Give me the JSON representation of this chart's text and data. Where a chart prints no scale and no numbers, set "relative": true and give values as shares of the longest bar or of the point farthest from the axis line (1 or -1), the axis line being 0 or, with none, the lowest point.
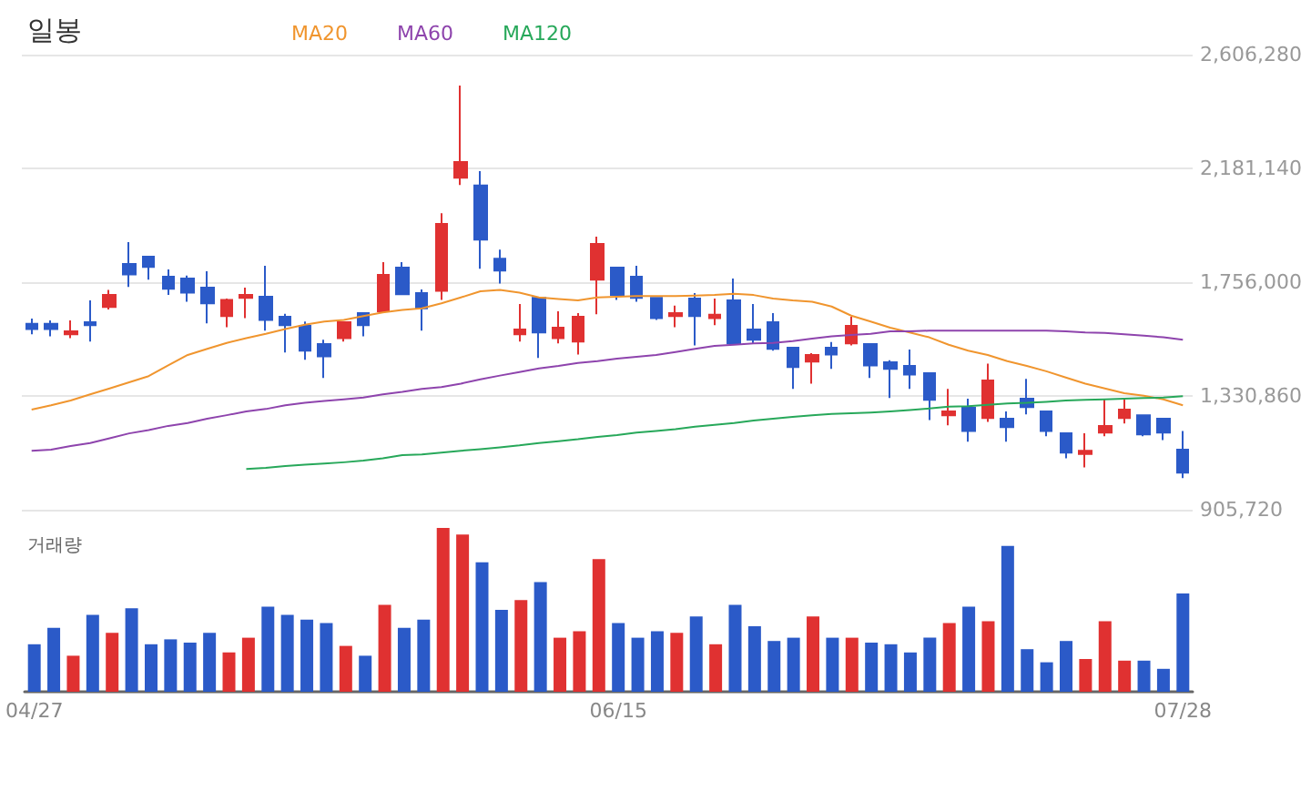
{
  "chart_data": [
    {
      "type": "candlestick",
      "title": "일봉",
      "categories": [
        null,
        null,
        null,
        null,
        null,
        null,
        null,
        null,
        null,
        null,
        null,
        null,
        null,
        null,
        null,
        null,
        null,
        null,
        null,
        null,
        null,
        null,
        null,
        null,
        null,
        null,
        null,
        null,
        null,
        null,
        null,
        null,
        null,
        null,
        null,
        null,
        null,
        null,
        null,
        null,
        null,
        null,
        null,
        null,
        null,
        null,
        null,
        null,
        null,
        null,
        null,
        null,
        null,
        null,
        null,
        null,
        null,
        null,
        null,
        null
      ],
      "ohlc": [
        [
          1600000,
          1620000,
          1561000,
          1581000
        ],
        [
          1600000,
          1613000,
          1554000,
          1581000
        ],
        [
          1561000,
          1613000,
          1547000,
          1572000
        ],
        [
          1606000,
          1688000,
          1534000,
          1595000
        ],
        [
          1663000,
          1727000,
          1654000,
          1708000
        ],
        [
          1824000,
          1906000,
          1738000,
          1785000
        ],
        [
          1851000,
          1851000,
          1765000,
          1813000
        ],
        [
          1776000,
          1804000,
          1708000,
          1731000
        ],
        [
          1770000,
          1781000,
          1683000,
          1717000
        ],
        [
          1736000,
          1797000,
          1602000,
          1677000
        ],
        [
          1629000,
          1695000,
          1588000,
          1690000
        ],
        [
          1697000,
          1736000,
          1622000,
          1708000
        ],
        [
          1702000,
          1817000,
          1575000,
          1615000
        ],
        [
          1627000,
          1638000,
          1493000,
          1595000
        ],
        [
          1593000,
          1609000,
          1466000,
          1500000
        ],
        [
          1525000,
          1541000,
          1398000,
          1479000
        ],
        [
          1547000,
          1609000,
          1534000,
          1606000
        ],
        [
          1640000,
          1640000,
          1554000,
          1595000
        ],
        [
          1647000,
          1831000,
          1647000,
          1783000
        ],
        [
          1810000,
          1831000,
          1711000,
          1711000
        ],
        [
          1715000,
          1729000,
          1575000,
          1658000
        ],
        [
          1724000,
          2014000,
          1690000,
          1974000
        ],
        [
          2146000,
          2491000,
          2119000,
          2205000
        ],
        [
          2117000,
          2171000,
          1806000,
          1915000
        ],
        [
          1844000,
          1878000,
          1751000,
          1799000
        ],
        [
          1561000,
          1674000,
          1534000,
          1579000
        ],
        [
          1697000,
          1697000,
          1473000,
          1568000
        ],
        [
          1547000,
          1647000,
          1527000,
          1586000
        ],
        [
          1534000,
          1640000,
          1486000,
          1627000
        ],
        [
          1765000,
          1926000,
          1636000,
          1899000
        ],
        [
          1810000,
          1810000,
          1690000,
          1708000
        ],
        [
          1776000,
          1817000,
          1683000,
          1697000
        ],
        [
          1697000,
          1697000,
          1615000,
          1622000
        ],
        [
          1629000,
          1668000,
          1588000,
          1640000
        ],
        [
          1695000,
          1715000,
          1520000,
          1629000
        ],
        [
          1622000,
          1695000,
          1595000,
          1634000
        ],
        [
          1688000,
          1770000,
          1527000,
          1527000
        ],
        [
          1579000,
          1674000,
          1527000,
          1541000
        ],
        [
          1606000,
          1640000,
          1500000,
          1507000
        ],
        [
          1511000,
          1511000,
          1357000,
          1439000
        ],
        [
          1459000,
          1491000,
          1377000,
          1484000
        ],
        [
          1511000,
          1532000,
          1432000,
          1486000
        ],
        [
          1527000,
          1627000,
          1520000,
          1593000
        ],
        [
          1525000,
          1525000,
          1398000,
          1445000
        ],
        [
          1457000,
          1464000,
          1323000,
          1432000
        ],
        [
          1443000,
          1504000,
          1357000,
          1411000
        ],
        [
          1416000,
          1416000,
          1241000,
          1316000
        ],
        [
          1259000,
          1357000,
          1221000,
          1273000
        ],
        [
          1287000,
          1321000,
          1160000,
          1200000
        ],
        [
          1248000,
          1452000,
          1234000,
          1389000
        ],
        [
          1246000,
          1273000,
          1160000,
          1214000
        ],
        [
          1321000,
          1395000,
          1262000,
          1289000
        ],
        [
          1273000,
          1273000,
          1180000,
          1200000
        ],
        [
          1191000,
          1191000,
          1098000,
          1119000
        ],
        [
          1114000,
          1191000,
          1064000,
          1126000
        ],
        [
          1194000,
          1321000,
          1180000,
          1219000
        ],
        [
          1248000,
          1321000,
          1228000,
          1280000
        ],
        [
          1259000,
          1259000,
          1180000,
          1187000
        ],
        [
          1246000,
          1246000,
          1166000,
          1194000
        ],
        [
          1130000,
          1200000,
          1024000,
          1044000
        ]
      ],
      "colors": [
        "#2b5ac8",
        "#2b5ac8",
        "#e03131",
        "#2b5ac8",
        "#e03131",
        "#2b5ac8",
        "#2b5ac8",
        "#2b5ac8",
        "#2b5ac8",
        "#2b5ac8",
        "#e03131",
        "#e03131",
        "#2b5ac8",
        "#2b5ac8",
        "#2b5ac8",
        "#2b5ac8",
        "#e03131",
        "#2b5ac8",
        "#e03131",
        "#2b5ac8",
        "#2b5ac8",
        "#e03131",
        "#e03131",
        "#2b5ac8",
        "#2b5ac8",
        "#e03131",
        "#2b5ac8",
        "#e03131",
        "#e03131",
        "#e03131",
        "#2b5ac8",
        "#2b5ac8",
        "#2b5ac8",
        "#e03131",
        "#2b5ac8",
        "#e03131",
        "#2b5ac8",
        "#2b5ac8",
        "#2b5ac8",
        "#2b5ac8",
        "#e03131",
        "#2b5ac8",
        "#e03131",
        "#2b5ac8",
        "#2b5ac8",
        "#2b5ac8",
        "#2b5ac8",
        "#e03131",
        "#2b5ac8",
        "#e03131",
        "#2b5ac8",
        "#2b5ac8",
        "#2b5ac8",
        "#2b5ac8",
        "#e03131",
        "#e03131",
        "#e03131",
        "#2b5ac8",
        "#2b5ac8",
        "#2b5ac8"
      ],
      "series": [
        {
          "name": "MA20",
          "type": "line",
          "color": "#f0952e",
          "values": [
            1280000,
            1296000,
            1314000,
            1337000,
            1359000,
            1382000,
            1405000,
            1445000,
            1484000,
            1507000,
            1529000,
            1547000,
            1563000,
            1581000,
            1597000,
            1609000,
            1615000,
            1629000,
            1643000,
            1652000,
            1658000,
            1677000,
            1699000,
            1722000,
            1727000,
            1717000,
            1699000,
            1693000,
            1688000,
            1699000,
            1702000,
            1704000,
            1704000,
            1704000,
            1706000,
            1708000,
            1713000,
            1708000,
            1695000,
            1688000,
            1683000,
            1665000,
            1631000,
            1609000,
            1586000,
            1568000,
            1550000,
            1522000,
            1500000,
            1484000,
            1461000,
            1443000,
            1423000,
            1400000,
            1377000,
            1359000,
            1341000,
            1332000,
            1318000,
            1296000
          ]
        },
        {
          "name": "MA60",
          "type": "line",
          "color": "#8e44ad",
          "values": [
            1126000,
            1130000,
            1144000,
            1155000,
            1173000,
            1191000,
            1203000,
            1219000,
            1230000,
            1246000,
            1259000,
            1273000,
            1282000,
            1296000,
            1305000,
            1312000,
            1318000,
            1325000,
            1337000,
            1346000,
            1357000,
            1364000,
            1377000,
            1393000,
            1407000,
            1420000,
            1434000,
            1443000,
            1454000,
            1461000,
            1470000,
            1477000,
            1484000,
            1495000,
            1507000,
            1518000,
            1522000,
            1527000,
            1529000,
            1536000,
            1545000,
            1554000,
            1559000,
            1563000,
            1572000,
            1572000,
            1575000,
            1575000,
            1575000,
            1575000,
            1575000,
            1575000,
            1575000,
            1572000,
            1568000,
            1566000,
            1561000,
            1556000,
            1550000,
            1541000
          ]
        },
        {
          "name": "MA120",
          "type": "line",
          "color": "#27a85a",
          "values": [
            null,
            null,
            null,
            null,
            null,
            null,
            null,
            null,
            null,
            null,
            null,
            1058000,
            1062000,
            1069000,
            1074000,
            1078000,
            1083000,
            1089000,
            1098000,
            1110000,
            1112000,
            1119000,
            1126000,
            1132000,
            1139000,
            1146000,
            1155000,
            1162000,
            1169000,
            1178000,
            1185000,
            1194000,
            1200000,
            1207000,
            1216000,
            1223000,
            1230000,
            1239000,
            1246000,
            1253000,
            1259000,
            1264000,
            1266000,
            1269000,
            1273000,
            1278000,
            1284000,
            1291000,
            1293000,
            1298000,
            1303000,
            1305000,
            1309000,
            1314000,
            1316000,
            1318000,
            1321000,
            1323000,
            1325000,
            1330000
          ]
        }
      ],
      "ylim": [
        905720,
        2606280
      ],
      "yticks": [
        {
          "value": 905720,
          "label": "905,720"
        },
        {
          "value": 1330860,
          "label": "1,330,860"
        },
        {
          "value": 1756000,
          "label": "1,756,000"
        },
        {
          "value": 2181140,
          "label": "2,181,140"
        },
        {
          "value": 2606280,
          "label": "2,606,280"
        }
      ],
      "grid": "y",
      "legend": "top",
      "marker": "none",
      "tick_labels": "y"
    },
    {
      "type": "bar",
      "title": "거래량",
      "relative": true,
      "categories": [
        "04/27",
        null,
        null,
        null,
        null,
        null,
        null,
        null,
        null,
        null,
        null,
        null,
        null,
        null,
        null,
        null,
        null,
        null,
        null,
        null,
        null,
        null,
        null,
        null,
        null,
        null,
        null,
        null,
        null,
        null,
        "06/15",
        null,
        null,
        null,
        null,
        null,
        null,
        null,
        null,
        null,
        null,
        null,
        null,
        null,
        null,
        null,
        null,
        null,
        null,
        null,
        null,
        null,
        null,
        null,
        null,
        null,
        null,
        null,
        null,
        "07/28"
      ],
      "values": [
        0.29,
        0.39,
        0.22,
        0.47,
        0.36,
        0.51,
        0.29,
        0.32,
        0.3,
        0.36,
        0.24,
        0.33,
        0.52,
        0.47,
        0.44,
        0.42,
        0.28,
        0.22,
        0.53,
        0.39,
        0.44,
        1,
        0.96,
        0.79,
        0.5,
        0.56,
        0.67,
        0.33,
        0.37,
        0.81,
        0.42,
        0.33,
        0.37,
        0.36,
        0.46,
        0.29,
        0.53,
        0.4,
        0.31,
        0.33,
        0.46,
        0.33,
        0.33,
        0.3,
        0.29,
        0.24,
        0.33,
        0.42,
        0.52,
        0.43,
        0.89,
        0.26,
        0.18,
        0.31,
        0.2,
        0.43,
        0.19,
        0.19,
        0.14,
        0.6
      ],
      "colors": [
        "#2b5ac8",
        "#2b5ac8",
        "#e03131",
        "#2b5ac8",
        "#e03131",
        "#2b5ac8",
        "#2b5ac8",
        "#2b5ac8",
        "#2b5ac8",
        "#2b5ac8",
        "#e03131",
        "#e03131",
        "#2b5ac8",
        "#2b5ac8",
        "#2b5ac8",
        "#2b5ac8",
        "#e03131",
        "#2b5ac8",
        "#e03131",
        "#2b5ac8",
        "#2b5ac8",
        "#e03131",
        "#e03131",
        "#2b5ac8",
        "#2b5ac8",
        "#e03131",
        "#2b5ac8",
        "#e03131",
        "#e03131",
        "#e03131",
        "#2b5ac8",
        "#2b5ac8",
        "#2b5ac8",
        "#e03131",
        "#2b5ac8",
        "#e03131",
        "#2b5ac8",
        "#2b5ac8",
        "#2b5ac8",
        "#2b5ac8",
        "#e03131",
        "#2b5ac8",
        "#e03131",
        "#2b5ac8",
        "#2b5ac8",
        "#2b5ac8",
        "#2b5ac8",
        "#e03131",
        "#2b5ac8",
        "#e03131",
        "#2b5ac8",
        "#2b5ac8",
        "#2b5ac8",
        "#2b5ac8",
        "#e03131",
        "#e03131",
        "#e03131",
        "#2b5ac8",
        "#2b5ac8",
        "#2b5ac8"
      ]
    }
  ]
}
